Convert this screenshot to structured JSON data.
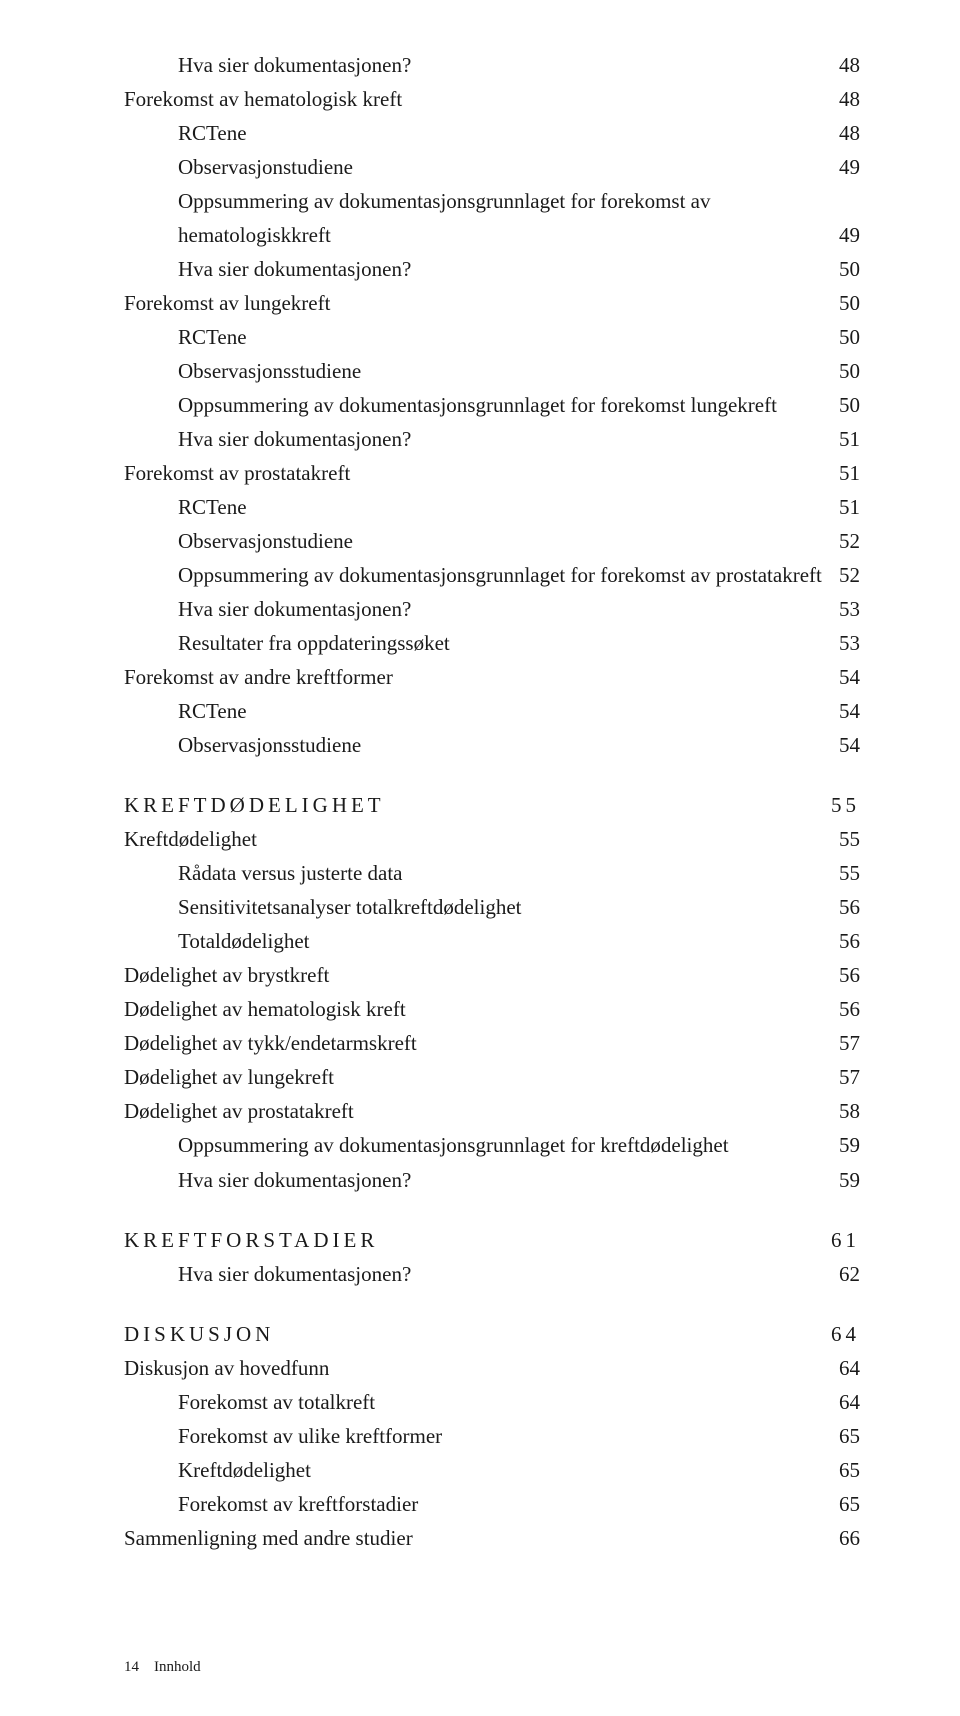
{
  "toc": {
    "lines": [
      {
        "label": "Hva sier dokumentasjonen?",
        "page": "48",
        "indent": 1
      },
      {
        "label": "Forekomst av hematologisk kreft",
        "page": "48",
        "indent": 0
      },
      {
        "label": "RCTene",
        "page": "48",
        "indent": 1
      },
      {
        "label": "Observasjonstudiene",
        "page": "49",
        "indent": 1
      },
      {
        "label": "Oppsummering av dokumentasjonsgrunnlaget for forekomst av",
        "page": "",
        "indent": 1,
        "nowrapPage": true
      },
      {
        "label": "hematologiskkreft",
        "page": "49",
        "indent": 0,
        "wrap": true
      },
      {
        "label": "Hva sier dokumentasjonen?",
        "page": "50",
        "indent": 1
      },
      {
        "label": "Forekomst av lungekreft",
        "page": "50",
        "indent": 0
      },
      {
        "label": "RCTene",
        "page": "50",
        "indent": 1
      },
      {
        "label": "Observasjonsstudiene",
        "page": "50",
        "indent": 1
      },
      {
        "label": "Oppsummering av dokumentasjonsgrunnlaget for forekomst lungekreft",
        "page": "50",
        "indent": 1
      },
      {
        "label": "Hva sier dokumentasjonen?",
        "page": "51",
        "indent": 1
      },
      {
        "label": "Forekomst av prostatakreft",
        "page": "51",
        "indent": 0
      },
      {
        "label": "RCTene",
        "page": "51",
        "indent": 1
      },
      {
        "label": "Observasjonstudiene",
        "page": "52",
        "indent": 1
      },
      {
        "label": "Oppsummering av dokumentasjonsgrunnlaget for forekomst av prostatakreft",
        "page": "52",
        "indent": 1,
        "tight": true
      },
      {
        "label": "Hva sier dokumentasjonen?",
        "page": "53",
        "indent": 1
      },
      {
        "label": "Resultater fra oppdateringssøket",
        "page": "53",
        "indent": 1
      },
      {
        "label": "Forekomst av andre kreftformer",
        "page": "54",
        "indent": 0
      },
      {
        "label": "RCTene",
        "page": "54",
        "indent": 1
      },
      {
        "label": "Observasjonsstudiene",
        "page": "54",
        "indent": 1
      }
    ],
    "sections": [
      {
        "head": {
          "label": "KREFTDØDELIGHET",
          "page": "55"
        },
        "lines": [
          {
            "label": "Kreftdødelighet",
            "page": "55",
            "indent": 0
          },
          {
            "label": "Rådata versus justerte data",
            "page": "55",
            "indent": 1
          },
          {
            "label": "Sensitivitetsanalyser totalkreftdødelighet",
            "page": "56",
            "indent": 1
          },
          {
            "label": "Totaldødelighet",
            "page": "56",
            "indent": 1
          },
          {
            "label": "Dødelighet av brystkreft",
            "page": "56",
            "indent": 0
          },
          {
            "label": "Dødelighet av hematologisk kreft",
            "page": "56",
            "indent": 0
          },
          {
            "label": "Dødelighet av tykk/endetarmskreft",
            "page": "57",
            "indent": 0
          },
          {
            "label": "Dødelighet av lungekreft",
            "page": "57",
            "indent": 0
          },
          {
            "label": "Dødelighet av prostatakreft",
            "page": "58",
            "indent": 0
          },
          {
            "label": "Oppsummering av dokumentasjonsgrunnlaget for kreftdødelighet",
            "page": "59",
            "indent": 1
          },
          {
            "label": "Hva sier dokumentasjonen?",
            "page": "59",
            "indent": 1
          }
        ]
      },
      {
        "head": {
          "label": "KREFTFORSTADIER",
          "page": "61"
        },
        "lines": [
          {
            "label": "Hva sier dokumentasjonen?",
            "page": "62",
            "indent": 1
          }
        ]
      },
      {
        "head": {
          "label": "DISKUSJON",
          "page": "64"
        },
        "lines": [
          {
            "label": "Diskusjon av hovedfunn",
            "page": "64",
            "indent": 0
          },
          {
            "label": "Forekomst av totalkreft",
            "page": "64",
            "indent": 1
          },
          {
            "label": "Forekomst av ulike kreftformer",
            "page": "65",
            "indent": 1
          },
          {
            "label": "Kreftdødelighet",
            "page": "65",
            "indent": 1
          },
          {
            "label": "Forekomst av kreftforstadier",
            "page": "65",
            "indent": 1
          },
          {
            "label": "Sammenligning med andre studier",
            "page": "66",
            "indent": 0
          }
        ]
      }
    ]
  },
  "footer": {
    "pageNumber": "14",
    "label": "Innhold"
  }
}
